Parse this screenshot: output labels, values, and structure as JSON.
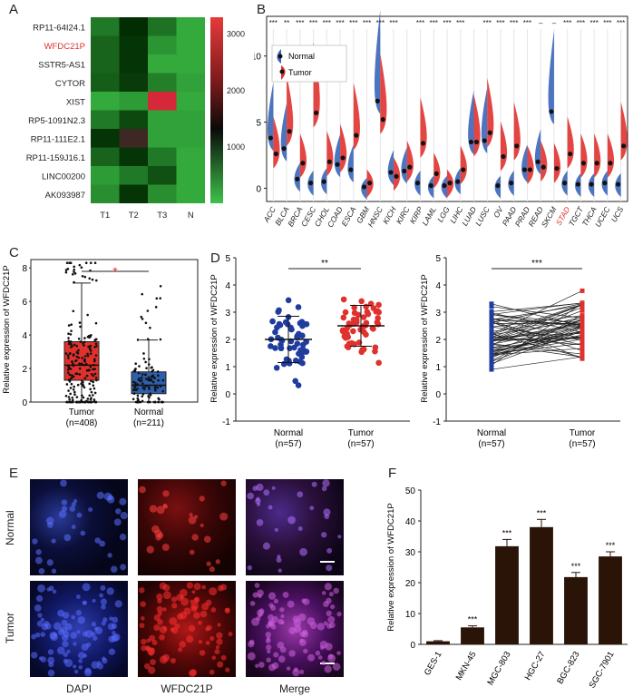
{
  "panels": {
    "a": "A",
    "b": "B",
    "c": "C",
    "d": "D",
    "e": "E",
    "f": "F"
  },
  "heatmap": {
    "rows": [
      "RP11-64I24.1",
      "WFDC21P",
      "SSTR5-AS1",
      "CYTOR",
      "XIST",
      "RP5-1091N2.3",
      "RP11-111E2.1",
      "RP11-159J16.1",
      "LINC00200",
      "AK093987"
    ],
    "highlight_row": "WFDC21P",
    "cols": [
      "T1",
      "T2",
      "T3",
      "N"
    ],
    "values": [
      [
        500,
        1050,
        550,
        150
      ],
      [
        650,
        1000,
        300,
        150
      ],
      [
        650,
        1000,
        150,
        150
      ],
      [
        700,
        950,
        450,
        200
      ],
      [
        150,
        250,
        2900,
        150
      ],
      [
        500,
        850,
        200,
        200
      ],
      [
        1000,
        1400,
        200,
        200
      ],
      [
        650,
        1000,
        500,
        150
      ],
      [
        250,
        500,
        800,
        150
      ],
      [
        350,
        1000,
        350,
        150
      ]
    ],
    "colorbar_ticks": [
      "3000",
      "2000",
      "1000"
    ],
    "colorbar_values": [
      3000,
      2000,
      1000
    ],
    "range": [
      0,
      3300
    ]
  },
  "violin": {
    "ylabel": "Relative expression of WFDC21P",
    "yticks": [
      "0",
      "5",
      "10"
    ],
    "ytick_values": [
      0,
      5,
      10
    ],
    "ylim": [
      -1,
      13
    ],
    "legend": [
      "Normal",
      "Tumor"
    ],
    "highlight": "STAD",
    "cancers": [
      "ACC",
      "BLCA",
      "BRCA",
      "CESC",
      "CHOL",
      "COAD",
      "ESCA",
      "GBM",
      "HNSC",
      "KICH",
      "KIRC",
      "KIRP",
      "LAML",
      "LGG",
      "LIHC",
      "LUAD",
      "LUSC",
      "OV",
      "PAAD",
      "PRAD",
      "READ",
      "SKCM",
      "STAD",
      "TGCT",
      "THCA",
      "UCEC",
      "UCS"
    ],
    "sig": [
      "***",
      "**",
      "***",
      "***",
      "***",
      "***",
      "***",
      "***",
      "***",
      "***",
      "",
      "***",
      "***",
      "***",
      "***",
      "",
      "***",
      "***",
      "***",
      "***",
      "–",
      "–",
      "***",
      "***",
      "***",
      "***",
      "***"
    ],
    "normal": [
      3.8,
      3.0,
      0.7,
      0.4,
      0.5,
      1.8,
      1.4,
      0.1,
      6.6,
      1.2,
      1.3,
      0.4,
      0.2,
      0.2,
      0.5,
      3.5,
      3.6,
      0.2,
      0.4,
      1.4,
      2.0,
      5.8,
      0.4,
      0.3,
      0.3,
      0.4,
      0.3
    ],
    "tumor": [
      2.6,
      4.3,
      1.9,
      5.7,
      2.0,
      2.3,
      4.0,
      0.4,
      5.2,
      0.9,
      1.6,
      3.4,
      1.1,
      0.4,
      1.4,
      3.5,
      4.2,
      2.4,
      3.2,
      1.4,
      1.6,
      1.5,
      2.6,
      1.9,
      1.9,
      1.9,
      3.2
    ]
  },
  "boxplot": {
    "ylabel": "Relative expression of WFDC21P",
    "yticks": [
      "0",
      "2",
      "4",
      "6",
      "8"
    ],
    "ytick_values": [
      0,
      2,
      4,
      6,
      8
    ],
    "ylim": [
      0,
      8.5
    ],
    "groups": [
      {
        "label": "Tumor",
        "n": "(n=408)",
        "q1": 1.3,
        "median": 2.2,
        "q3": 3.6,
        "whisker_low": 0,
        "whisker_high": 7.1,
        "color": "#e0312d"
      },
      {
        "label": "Normal",
        "n": "(n=211)",
        "q1": 0.5,
        "median": 1.0,
        "q3": 1.8,
        "whisker_low": 0,
        "whisker_high": 3.7,
        "color": "#2e5faa"
      }
    ],
    "sig": "*"
  },
  "dotplot": {
    "ylabel": "Relative expression of WFDC21P",
    "yticks": [
      "-1",
      "0",
      "1",
      "2",
      "3",
      "4",
      "5"
    ],
    "ytick_values": [
      -1,
      0,
      1,
      2,
      3,
      4,
      5
    ],
    "groups": [
      {
        "label": "Normal",
        "n": "(n=57)",
        "mean": 2.0,
        "sd": 0.85,
        "color": "#1f3c9e"
      },
      {
        "label": "Tumor",
        "n": "(n=57)",
        "mean": 2.5,
        "sd": 0.75,
        "color": "#e0312d"
      }
    ],
    "sig": "**"
  },
  "paired": {
    "ylabel": "Relative expression of WFDC21P",
    "yticks": [
      "-1",
      "0",
      "1",
      "2",
      "3",
      "4",
      "5"
    ],
    "ytick_values": [
      -1,
      0,
      1,
      2,
      3,
      4,
      5
    ],
    "groups": [
      {
        "label": "Normal",
        "n": "(n=57)",
        "color": "#1f3c9e"
      },
      {
        "label": "Tumor",
        "n": "(n=57)",
        "color": "#e0312d"
      }
    ],
    "sig": "***"
  },
  "micro": {
    "row_labels": [
      "Normal",
      "Tumor"
    ],
    "col_labels": [
      "DAPI",
      "WFDC21P",
      "Merge"
    ]
  },
  "bar": {
    "ylabel": "Relative expression of WFDC21P",
    "yticks": [
      "0",
      "10",
      "20",
      "30",
      "40",
      "50"
    ],
    "ytick_values": [
      0,
      10,
      20,
      30,
      40,
      50
    ],
    "ylim": [
      0,
      50
    ],
    "categories": [
      "GES-1",
      "MKN-45",
      "MGC-803",
      "HGC-27",
      "BGC-823",
      "SGC-7901"
    ],
    "values": [
      1.0,
      5.5,
      31.8,
      38.0,
      21.8,
      28.5
    ],
    "errors": [
      0.2,
      0.5,
      2.2,
      2.5,
      1.5,
      1.5
    ],
    "sig": [
      "",
      "***",
      "***",
      "***",
      "***",
      "***"
    ]
  }
}
